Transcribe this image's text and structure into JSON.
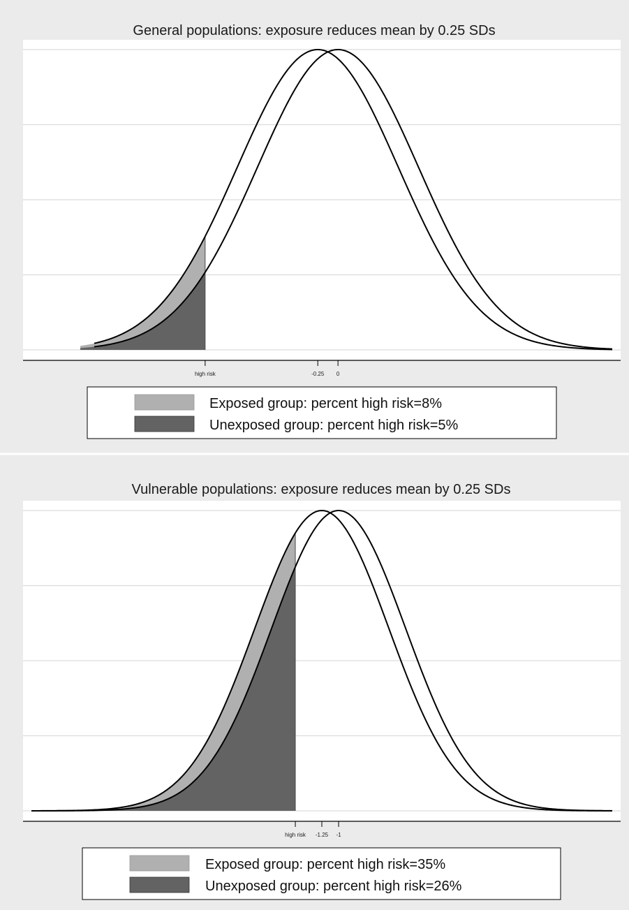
{
  "colors": {
    "figure_background": "#ebebeb",
    "plot_background": "#ffffff",
    "gridline": "#dcdcdc",
    "curve": "#000000",
    "exposed_fill": "#b0b0b0",
    "unexposed_fill": "#636363"
  },
  "chart_data": [
    {
      "type": "area",
      "title": "General populations: exposure reduces mean by 0.25 SDs",
      "xlabel": "",
      "ylabel": "",
      "grid": true,
      "legend_position": "bottom",
      "x_ticks": [
        {
          "value": -1.6449,
          "label": "high risk"
        },
        {
          "value": -0.25,
          "label": "-0.25"
        },
        {
          "value": 0,
          "label": "0"
        }
      ],
      "xlim": [
        -3.9,
        3.5
      ],
      "ylim": [
        0,
        0.4
      ],
      "threshold": -1.6449,
      "series": [
        {
          "name": "Exposed group: percent high risk=8%",
          "mean": -0.25,
          "sd": 1,
          "percent_high_risk": 8
        },
        {
          "name": "Unexposed group: percent high risk=5%",
          "mean": 0,
          "sd": 1,
          "percent_high_risk": 5
        }
      ]
    },
    {
      "type": "area",
      "title": "Vulnerable populations: exposure reduces mean by 0.25 SDs",
      "xlabel": "",
      "ylabel": "",
      "grid": true,
      "legend_position": "bottom",
      "x_ticks": [
        {
          "value": -1.6449,
          "label": "high risk"
        },
        {
          "value": -1.25,
          "label": "-1.25"
        },
        {
          "value": -1,
          "label": "-1"
        }
      ],
      "xlim": [
        -5.7,
        3.2
      ],
      "ylim": [
        0,
        0.4
      ],
      "threshold": -1.6449,
      "series": [
        {
          "name": "Exposed group: percent high risk=35%",
          "mean": -1.25,
          "sd": 1,
          "percent_high_risk": 35
        },
        {
          "name": "Unexposed group: percent high risk=26%",
          "mean": -1,
          "sd": 1,
          "percent_high_risk": 26
        }
      ]
    }
  ]
}
